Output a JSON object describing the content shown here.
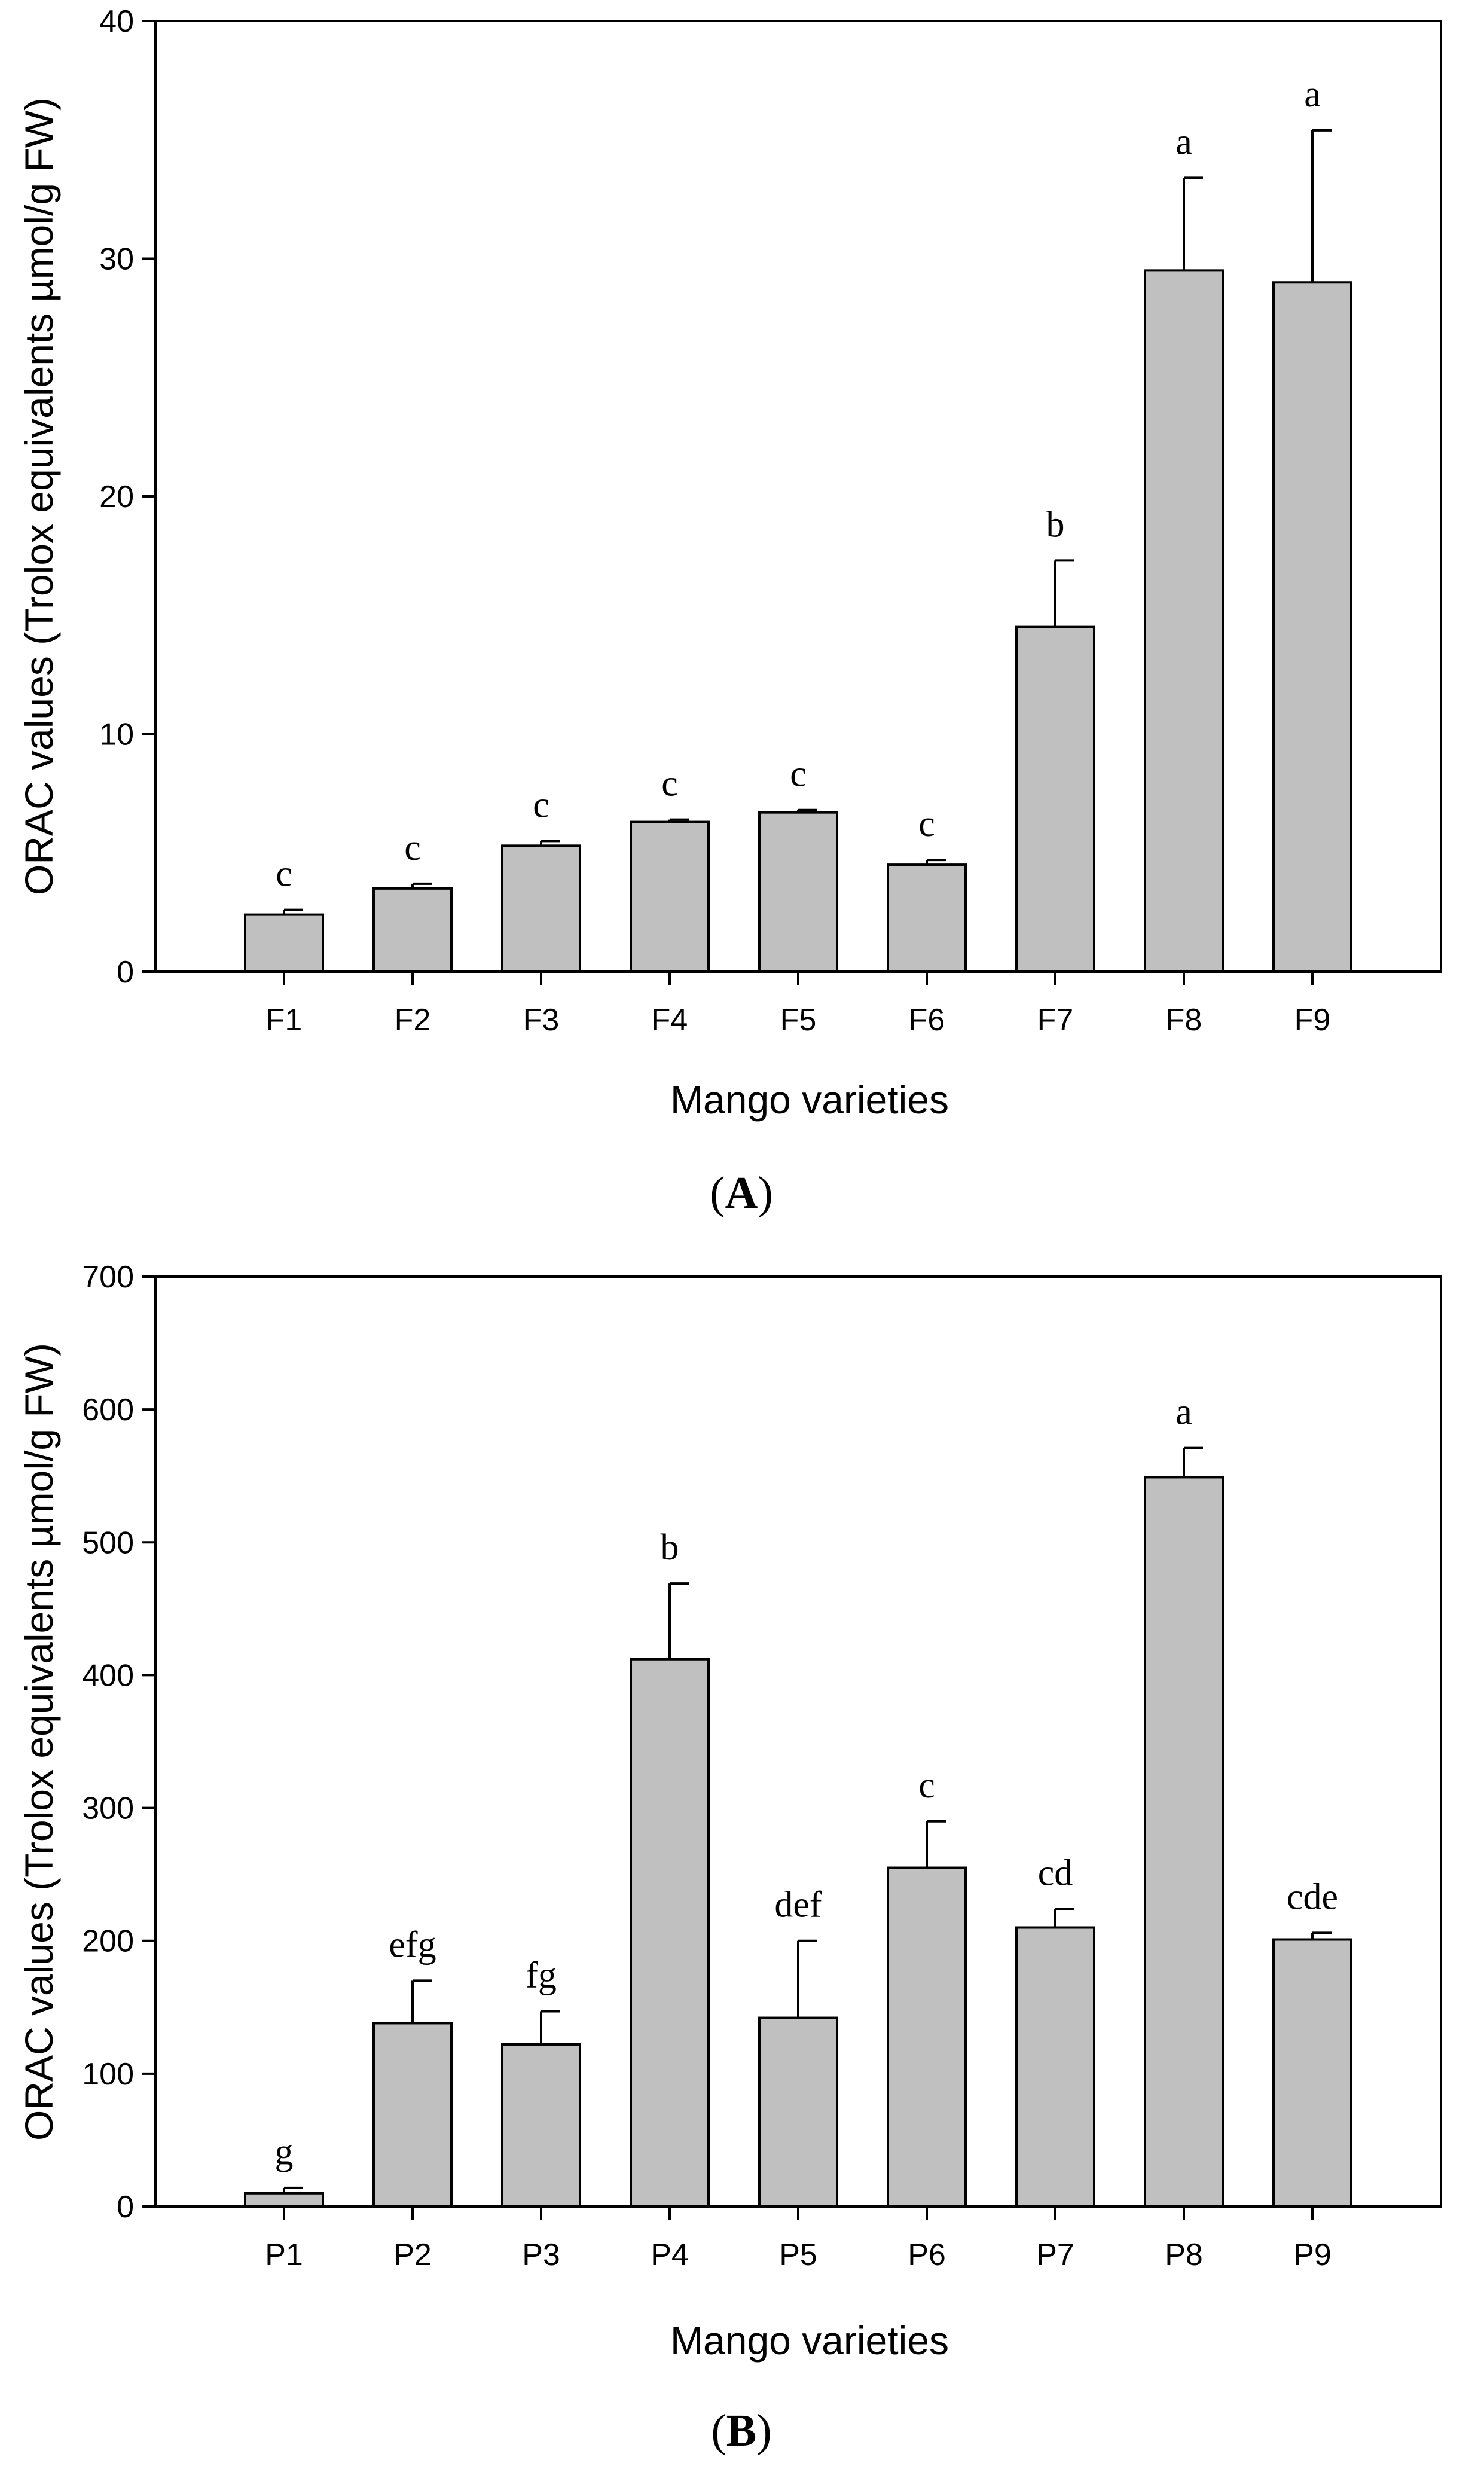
{
  "chart_data": [
    {
      "type": "bar",
      "panel_label": "A",
      "categories": [
        "F1",
        "F2",
        "F3",
        "F4",
        "F5",
        "F6",
        "F7",
        "F8",
        "F9"
      ],
      "values": [
        2.4,
        3.5,
        5.3,
        6.3,
        6.7,
        4.5,
        14.5,
        29.5,
        29.0
      ],
      "errors": [
        0.2,
        0.2,
        0.2,
        0.1,
        0.1,
        0.2,
        2.8,
        3.9,
        6.4
      ],
      "significance": [
        "c",
        "c",
        "c",
        "c",
        "c",
        "c",
        "b",
        "a",
        "a"
      ],
      "xlabel": "Mango varieties",
      "ylabel": "ORAC values (Trolox equivalents µmol/g FW)",
      "ylim": [
        0,
        40
      ],
      "yticks": [
        "0",
        "10",
        "20",
        "30",
        "40"
      ],
      "bar_color": "#c0c0c0",
      "grid": false
    },
    {
      "type": "bar",
      "panel_label": "B",
      "categories": [
        "P1",
        "P2",
        "P3",
        "P4",
        "P5",
        "P6",
        "P7",
        "P8",
        "P9"
      ],
      "values": [
        10,
        138,
        122,
        412,
        142,
        255,
        210,
        549,
        201
      ],
      "errors": [
        4,
        32,
        25,
        57,
        58,
        35,
        14,
        22,
        5
      ],
      "significance": [
        "g",
        "efg",
        "fg",
        "b",
        "def",
        "c",
        "cd",
        "a",
        "cde"
      ],
      "xlabel": "Mango varieties",
      "ylabel": "ORAC values (Trolox equivalents µmol/g FW)",
      "ylim": [
        0,
        700
      ],
      "yticks": [
        "0",
        "100",
        "200",
        "300",
        "400",
        "500",
        "600",
        "700"
      ],
      "bar_color": "#c0c0c0",
      "grid": false
    }
  ]
}
